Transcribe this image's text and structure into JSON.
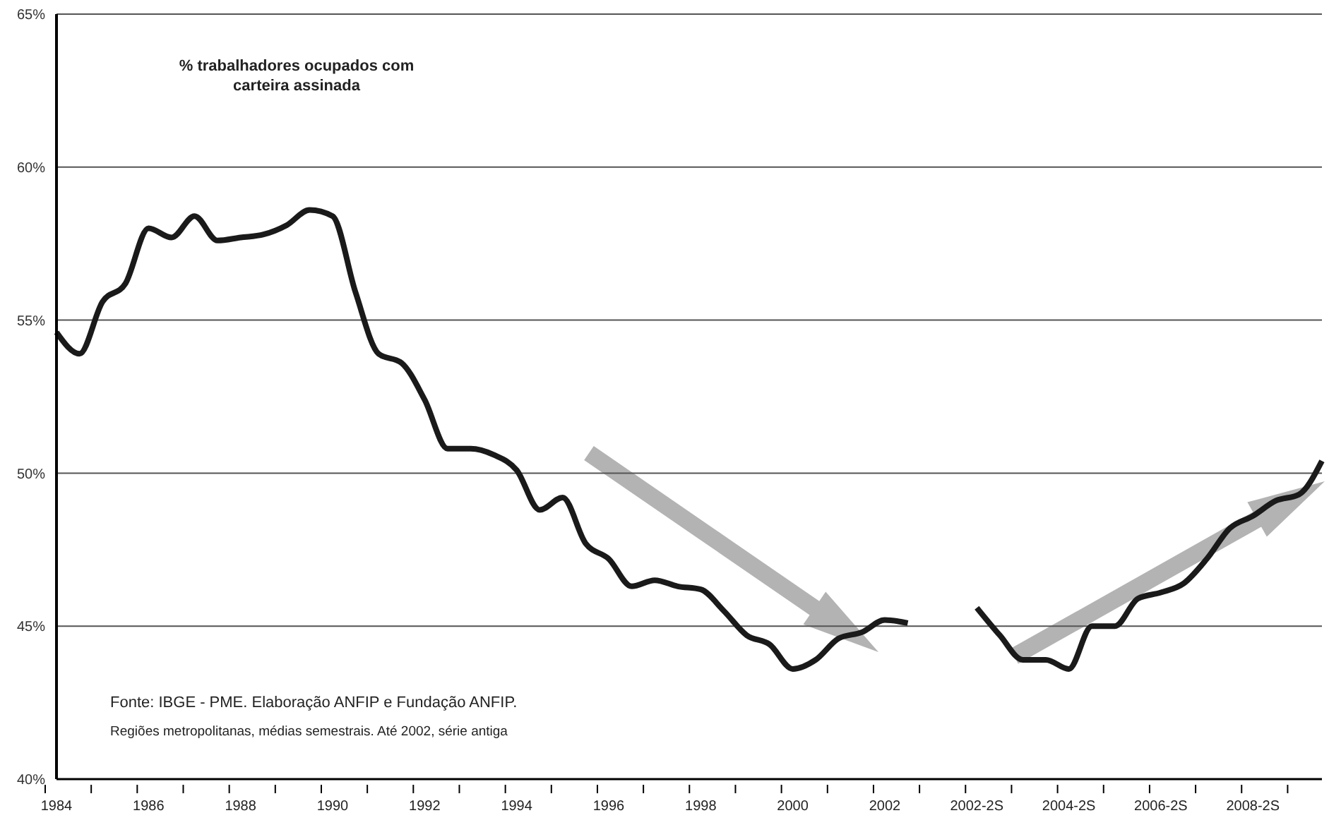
{
  "chart_data": {
    "type": "line",
    "title": "% trabalhadores ocupados com carteira assinada",
    "annotations": [
      "Fonte: IBGE - PME. Elaboração ANFIP e Fundação ANFIP.",
      "Regiões metropolitanas, médias semestrais. Até 2002, série antiga"
    ],
    "categories": [
      "1984",
      null,
      null,
      null,
      "1986",
      null,
      null,
      null,
      "1988",
      null,
      null,
      null,
      "1990",
      null,
      null,
      null,
      "1992",
      null,
      null,
      null,
      "1994",
      null,
      null,
      null,
      "1996",
      null,
      null,
      null,
      "1998",
      null,
      null,
      null,
      "2000",
      null,
      null,
      null,
      "2002",
      null,
      null,
      null,
      "2002-2S",
      null,
      null,
      null,
      "2004-2S",
      null,
      null,
      null,
      "2006-2S",
      null,
      null,
      null,
      "2008-2S",
      null,
      null,
      null
    ],
    "series": [
      {
        "color": "#1a1a1a",
        "values": [
          54.6,
          53.9,
          55.6,
          56.2,
          58.0,
          57.7,
          58.4,
          57.6,
          57.7,
          57.8,
          58.1,
          58.6,
          58.4,
          55.9,
          53.9,
          53.6,
          52.4,
          50.8,
          50.8,
          50.6,
          50.1,
          48.8,
          49.2,
          47.7,
          47.2,
          46.3,
          46.5,
          46.3,
          46.2,
          45.5,
          44.7,
          44.4,
          43.6,
          43.9,
          44.6,
          44.8,
          45.2,
          45.1,
          null,
          null,
          45.6,
          44.7,
          43.9,
          43.9,
          43.6,
          45.0,
          45.0,
          45.9,
          46.1,
          46.4,
          47.2,
          48.2,
          48.6,
          49.1,
          49.3,
          50.4
        ]
      }
    ],
    "ylim": [
      40,
      65
    ],
    "yticks": [
      {
        "value": 40,
        "label": "40%"
      },
      {
        "value": 45,
        "label": "45%"
      },
      {
        "value": 50,
        "label": "50%"
      },
      {
        "value": 55,
        "label": "55%"
      },
      {
        "value": 60,
        "label": "60%"
      },
      {
        "value": 65,
        "label": "65%"
      }
    ],
    "grid": "y",
    "legend": false,
    "marker": "none",
    "line_style": "solid"
  }
}
